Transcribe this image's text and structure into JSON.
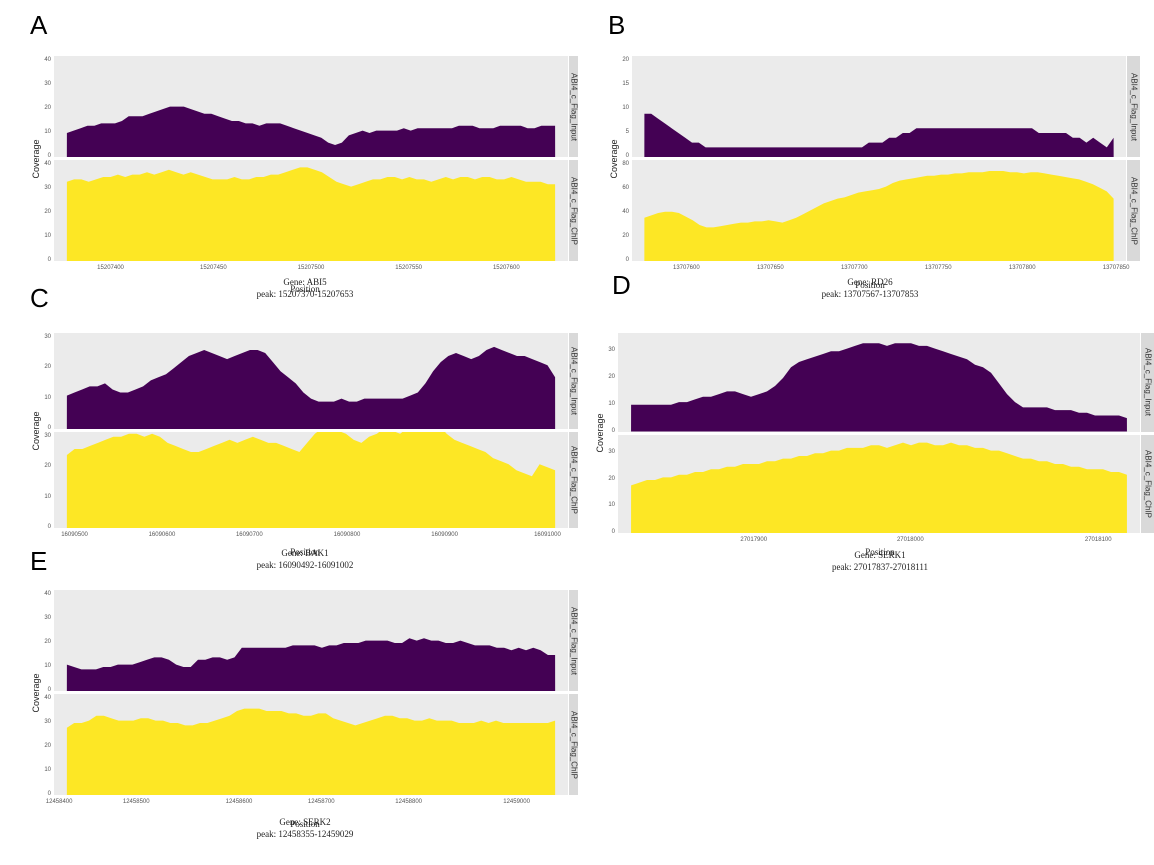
{
  "colors": {
    "input": "#440154",
    "chip": "#fde725",
    "panel_bg": "#ebebeb",
    "strip_bg": "#d9d9d9"
  },
  "chart_data": [
    {
      "type": "area",
      "panel": "A",
      "ylabel": "Coverage",
      "xlabel": "Position",
      "caption_gene": "Gene: ABI5",
      "caption_peak": "peak: 15207370-15207653",
      "xticks": [
        "15207400",
        "15207450",
        "15207500",
        "15207550",
        "15207600"
      ],
      "series": [
        {
          "name": "ABI4_c_Flag_Input",
          "yticks": [
            "0",
            "10",
            "20",
            "30",
            "40"
          ],
          "ylim": [
            0,
            40
          ],
          "values": [
            10,
            11,
            12,
            13,
            13,
            14,
            14,
            14,
            15,
            17,
            17,
            17,
            18,
            19,
            20,
            21,
            21,
            21,
            20,
            19,
            18,
            18,
            17,
            16,
            15,
            15,
            14,
            14,
            13,
            14,
            14,
            14,
            13,
            12,
            11,
            10,
            9,
            8,
            6,
            5,
            6,
            9,
            10,
            11,
            10,
            11,
            11,
            11,
            11,
            12,
            11,
            12,
            12,
            12,
            12,
            12,
            12,
            13,
            13,
            13,
            12,
            12,
            12,
            13,
            13,
            13,
            13,
            12,
            12,
            13,
            13,
            13
          ]
        },
        {
          "name": "ABI4_c_Flag_ChIP",
          "yticks": [
            "0",
            "10",
            "20",
            "30",
            "40"
          ],
          "ylim": [
            0,
            40
          ],
          "values": [
            33,
            34,
            34,
            33,
            34,
            35,
            35,
            36,
            35,
            36,
            36,
            37,
            36,
            37,
            38,
            37,
            36,
            37,
            36,
            35,
            34,
            34,
            34,
            35,
            34,
            34,
            35,
            35,
            36,
            36,
            37,
            38,
            39,
            39,
            38,
            37,
            35,
            33,
            32,
            31,
            32,
            33,
            34,
            34,
            35,
            35,
            34,
            35,
            34,
            34,
            33,
            34,
            35,
            34,
            35,
            35,
            34,
            35,
            35,
            34,
            34,
            35,
            34,
            33,
            33,
            33,
            32,
            32
          ]
        }
      ]
    },
    {
      "type": "area",
      "panel": "B",
      "ylabel": "Coverage",
      "xlabel": "Position",
      "caption_gene": "Gene: RD26",
      "caption_peak": "peak: 13707567-13707853",
      "xticks": [
        "13707600",
        "13707650",
        "13707700",
        "13707750",
        "13707800",
        "13707850"
      ],
      "series": [
        {
          "name": "ABI4_c_Flag_Input",
          "yticks": [
            "0",
            "5",
            "10",
            "15",
            "20"
          ],
          "ylim": [
            0,
            20
          ],
          "values": [
            9,
            9,
            8,
            7,
            6,
            5,
            4,
            3,
            3,
            2,
            2,
            2,
            2,
            2,
            2,
            2,
            2,
            2,
            2,
            2,
            2,
            2,
            2,
            2,
            2,
            2,
            2,
            2,
            2,
            2,
            2,
            2,
            2,
            3,
            3,
            3,
            4,
            4,
            5,
            5,
            6,
            6,
            6,
            6,
            6,
            6,
            6,
            6,
            6,
            6,
            6,
            6,
            6,
            6,
            6,
            6,
            6,
            6,
            5,
            5,
            5,
            5,
            5,
            4,
            4,
            3,
            4,
            3,
            2,
            4
          ]
        },
        {
          "name": "ABI4_c_Flag_ChIP",
          "yticks": [
            "0",
            "20",
            "40",
            "60",
            "80"
          ],
          "ylim": [
            0,
            80
          ],
          "values": [
            36,
            38,
            40,
            41,
            41,
            40,
            37,
            34,
            30,
            28,
            28,
            29,
            30,
            31,
            32,
            32,
            33,
            33,
            34,
            33,
            32,
            34,
            36,
            39,
            42,
            45,
            48,
            50,
            52,
            53,
            55,
            57,
            58,
            59,
            60,
            62,
            65,
            67,
            68,
            69,
            70,
            71,
            71,
            72,
            72,
            73,
            73,
            74,
            74,
            74,
            75,
            75,
            75,
            74,
            74,
            73,
            74,
            74,
            73,
            72,
            71,
            70,
            69,
            68,
            66,
            64,
            61,
            58,
            52
          ]
        }
      ]
    },
    {
      "type": "area",
      "panel": "C",
      "ylabel": "Coverage",
      "xlabel": "Position",
      "caption_gene": "Gene: BAK1",
      "caption_peak": "peak: 16090492-16091002",
      "xticks": [
        "16090500",
        "16090600",
        "16090700",
        "16090800",
        "16090900",
        "16091000"
      ],
      "series": [
        {
          "name": "ABI4_c_Flag_Input",
          "yticks": [
            "0",
            "10",
            "20",
            "30"
          ],
          "ylim": [
            0,
            30
          ],
          "values": [
            11,
            12,
            13,
            14,
            14,
            15,
            13,
            12,
            12,
            13,
            14,
            16,
            17,
            18,
            20,
            22,
            24,
            25,
            26,
            25,
            24,
            23,
            24,
            25,
            26,
            26,
            25,
            22,
            19,
            17,
            15,
            12,
            10,
            9,
            9,
            9,
            10,
            9,
            9,
            10,
            10,
            10,
            10,
            10,
            10,
            11,
            12,
            15,
            19,
            22,
            24,
            25,
            24,
            23,
            24,
            26,
            27,
            26,
            25,
            24,
            24,
            23,
            22,
            21,
            17
          ]
        },
        {
          "name": "ABI4_c_Flag_ChIP",
          "yticks": [
            "0",
            "10",
            "20",
            "30"
          ],
          "ylim": [
            0,
            30
          ],
          "values": [
            24,
            26,
            26,
            27,
            28,
            29,
            30,
            30,
            31,
            31,
            30,
            31,
            30,
            28,
            27,
            26,
            25,
            25,
            26,
            27,
            28,
            29,
            28,
            29,
            30,
            29,
            28,
            28,
            27,
            26,
            25,
            28,
            31,
            33,
            34,
            32,
            31,
            29,
            28,
            30,
            31,
            33,
            32,
            31,
            33,
            34,
            35,
            36,
            34,
            31,
            29,
            28,
            27,
            26,
            25,
            23,
            22,
            21,
            19,
            18,
            17,
            21,
            20,
            19
          ]
        }
      ]
    },
    {
      "type": "area",
      "panel": "D",
      "ylabel": "Coverage",
      "xlabel": "Position",
      "caption_gene": "Gene: SERK1",
      "caption_peak": "peak: 27017837-27018111",
      "xticks": [
        "27017900",
        "27018000",
        "27018100"
      ],
      "series": [
        {
          "name": "ABI4_c_Flag_Input",
          "yticks": [
            "0",
            "10",
            "20",
            "30"
          ],
          "ylim": [
            0,
            35
          ],
          "values": [
            10,
            10,
            10,
            10,
            10,
            10,
            11,
            11,
            12,
            13,
            13,
            14,
            15,
            15,
            14,
            13,
            14,
            15,
            17,
            20,
            24,
            26,
            27,
            28,
            29,
            30,
            30,
            31,
            32,
            33,
            33,
            33,
            32,
            33,
            33,
            33,
            32,
            32,
            31,
            30,
            29,
            28,
            27,
            25,
            24,
            22,
            18,
            14,
            11,
            9,
            9,
            9,
            9,
            8,
            8,
            8,
            7,
            7,
            6,
            6,
            6,
            6,
            5
          ]
        },
        {
          "name": "ABI4_c_Flag_ChIP",
          "yticks": [
            "0",
            "10",
            "20",
            "30"
          ],
          "ylim": [
            0,
            35
          ],
          "values": [
            18,
            19,
            20,
            20,
            21,
            21,
            22,
            22,
            23,
            23,
            24,
            24,
            25,
            25,
            26,
            26,
            26,
            27,
            27,
            28,
            28,
            29,
            29,
            30,
            30,
            31,
            31,
            32,
            32,
            32,
            33,
            33,
            32,
            33,
            34,
            33,
            34,
            34,
            33,
            33,
            34,
            33,
            33,
            32,
            32,
            31,
            31,
            30,
            29,
            28,
            28,
            27,
            27,
            26,
            26,
            25,
            25,
            24,
            24,
            24,
            23,
            23,
            22
          ]
        }
      ]
    },
    {
      "type": "area",
      "panel": "E",
      "ylabel": "Coverage",
      "xlabel": "Position",
      "caption_gene": "Gene: SERK2",
      "caption_peak": "peak: 12458355-12459029",
      "xticks": [
        "12458400",
        "12458500",
        "12458600",
        "12458700",
        "12458800",
        "12459000"
      ],
      "series": [
        {
          "name": "ABI4_c_Flag_Input",
          "yticks": [
            "0",
            "10",
            "20",
            "30",
            "40"
          ],
          "ylim": [
            0,
            40
          ],
          "values": [
            11,
            10,
            9,
            9,
            9,
            10,
            10,
            11,
            11,
            11,
            12,
            13,
            14,
            14,
            13,
            11,
            10,
            10,
            13,
            13,
            14,
            14,
            13,
            14,
            18,
            18,
            18,
            18,
            18,
            18,
            18,
            19,
            19,
            19,
            19,
            18,
            19,
            19,
            20,
            20,
            20,
            21,
            21,
            21,
            21,
            20,
            20,
            22,
            21,
            22,
            21,
            21,
            20,
            20,
            21,
            20,
            19,
            19,
            19,
            18,
            18,
            17,
            18,
            17,
            18,
            17,
            15,
            15
          ]
        },
        {
          "name": "ABI4_c_Flag_ChIP",
          "yticks": [
            "0",
            "10",
            "20",
            "30",
            "40"
          ],
          "ylim": [
            0,
            40
          ],
          "values": [
            28,
            30,
            30,
            31,
            33,
            33,
            32,
            31,
            31,
            31,
            32,
            32,
            31,
            31,
            30,
            30,
            29,
            29,
            30,
            30,
            31,
            32,
            33,
            35,
            36,
            36,
            36,
            35,
            35,
            35,
            34,
            34,
            33,
            33,
            34,
            34,
            32,
            31,
            30,
            29,
            30,
            31,
            32,
            33,
            33,
            32,
            32,
            31,
            31,
            32,
            31,
            31,
            31,
            30,
            30,
            30,
            31,
            30,
            31,
            30,
            30,
            30,
            30,
            30,
            30,
            30,
            31
          ]
        }
      ]
    }
  ]
}
